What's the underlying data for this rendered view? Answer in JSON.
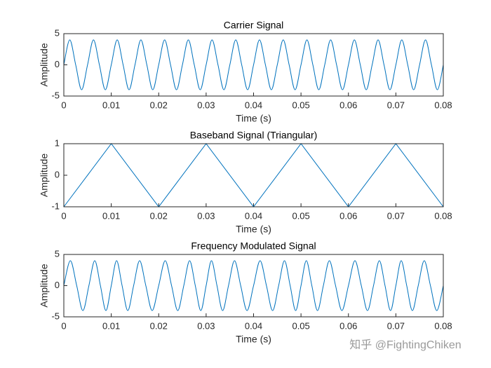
{
  "chart_data": [
    {
      "type": "line",
      "title": "Carrier Signal",
      "xlabel": "Time (s)",
      "ylabel": "Amplitude",
      "xlim": [
        0,
        0.08
      ],
      "xticks": [
        0,
        0.01,
        0.02,
        0.03,
        0.04,
        0.05,
        0.06,
        0.07,
        0.08
      ],
      "ylim": [
        -5,
        5
      ],
      "yticks": [
        -5,
        0,
        5
      ],
      "x": [
        0,
        0.00125,
        0.0025,
        0.00375,
        0.005,
        0.00625,
        0.0075,
        0.00875,
        0.01,
        0.01125,
        0.0125,
        0.01375,
        0.015,
        0.01625,
        0.0175,
        0.01875,
        0.02,
        0.02125,
        0.0225,
        0.02375,
        0.025,
        0.02625,
        0.0275,
        0.02875,
        0.03,
        0.03125,
        0.0325,
        0.03375,
        0.035,
        0.03625,
        0.0375,
        0.03875,
        0.04,
        0.04125,
        0.0425,
        0.04375,
        0.045,
        0.04625,
        0.0475,
        0.04875,
        0.05,
        0.05125,
        0.0525,
        0.05375,
        0.055,
        0.05625,
        0.0575,
        0.05875,
        0.06,
        0.06125,
        0.0625,
        0.06375,
        0.065,
        0.06625,
        0.0675,
        0.06875,
        0.07,
        0.07125,
        0.0725,
        0.07375,
        0.075,
        0.07625,
        0.0775,
        0.07875,
        0.08
      ],
      "series": [
        {
          "color": "#0072bd",
          "values": [
            0,
            4,
            0,
            -4,
            0,
            4,
            0,
            -4,
            0,
            4,
            0,
            -4,
            0,
            4,
            0,
            -4,
            0,
            4,
            0,
            -4,
            0,
            4,
            0,
            -4,
            0,
            4,
            0,
            -4,
            0,
            4,
            0,
            -4,
            0,
            4,
            0,
            -4,
            0,
            4,
            0,
            -4,
            0,
            4,
            0,
            -4,
            0,
            4,
            0,
            -4,
            0,
            4,
            0,
            -4,
            0,
            4,
            0,
            -4,
            0,
            4,
            0,
            -4,
            0,
            4,
            0,
            -4,
            0
          ]
        }
      ]
    },
    {
      "type": "line",
      "title": "Baseband Signal (Triangular)",
      "xlabel": "Time (s)",
      "ylabel": "Amplitude",
      "xlim": [
        0,
        0.08
      ],
      "xticks": [
        0,
        0.01,
        0.02,
        0.03,
        0.04,
        0.05,
        0.06,
        0.07,
        0.08
      ],
      "ylim": [
        -1,
        1
      ],
      "yticks": [
        -1,
        0,
        1
      ],
      "x": [
        0,
        0.01,
        0.02,
        0.03,
        0.04,
        0.05,
        0.06,
        0.07,
        0.08
      ],
      "series": [
        {
          "color": "#0072bd",
          "values": [
            -1,
            1,
            -1,
            1,
            -1,
            1,
            -1,
            1,
            -1
          ]
        }
      ]
    },
    {
      "type": "line",
      "title": "Frequency Modulated Signal",
      "xlabel": "Time (s)",
      "ylabel": "Amplitude",
      "xlim": [
        0,
        0.08
      ],
      "xticks": [
        0,
        0.01,
        0.02,
        0.03,
        0.04,
        0.05,
        0.06,
        0.07,
        0.08
      ],
      "ylim": [
        -5,
        5
      ],
      "yticks": [
        -5,
        0,
        5
      ],
      "x": [
        0,
        0.001375,
        0.002714,
        0.004018,
        0.005286,
        0.006518,
        0.007714,
        0.008875,
        0.01,
        0.011125,
        0.012286,
        0.013482,
        0.014714,
        0.015982,
        0.017286,
        0.018625,
        0.02,
        0.021375,
        0.022714,
        0.024018,
        0.025286,
        0.026518,
        0.027714,
        0.028875,
        0.03,
        0.031125,
        0.032286,
        0.033482,
        0.034714,
        0.035982,
        0.037286,
        0.038625,
        0.04,
        0.041375,
        0.042714,
        0.044018,
        0.045286,
        0.046518,
        0.047714,
        0.048875,
        0.05,
        0.051125,
        0.052286,
        0.053482,
        0.054714,
        0.055982,
        0.057286,
        0.058625,
        0.06,
        0.061375,
        0.062714,
        0.064018,
        0.065286,
        0.066518,
        0.067714,
        0.068875,
        0.07,
        0.071125,
        0.072286,
        0.073482,
        0.074714,
        0.075982,
        0.077286,
        0.078625,
        0.08
      ],
      "series": [
        {
          "color": "#0072bd",
          "values": [
            0,
            4,
            0,
            -4,
            0,
            4,
            0,
            -4,
            0,
            4,
            0,
            -4,
            0,
            4,
            0,
            -4,
            0,
            4,
            0,
            -4,
            0,
            4,
            0,
            -4,
            0,
            4,
            0,
            -4,
            0,
            4,
            0,
            -4,
            0,
            4,
            0,
            -4,
            0,
            4,
            0,
            -4,
            0,
            4,
            0,
            -4,
            0,
            4,
            0,
            -4,
            0,
            4,
            0,
            -4,
            0,
            4,
            0,
            -4,
            0,
            4,
            0,
            -4,
            0,
            4,
            0,
            -4,
            0
          ]
        }
      ]
    }
  ],
  "watermark": "知乎 @FightingChiken"
}
